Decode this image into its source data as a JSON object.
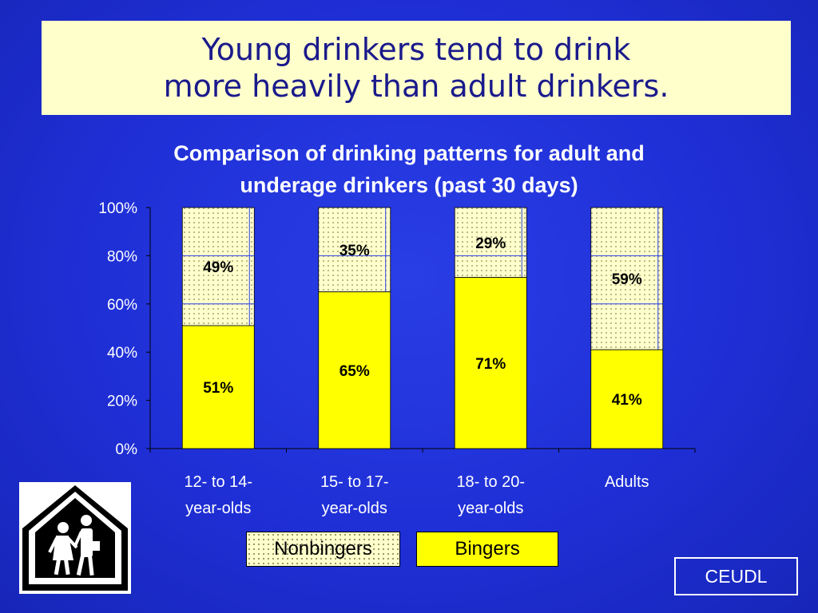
{
  "slide": {
    "title_line1": "Young drinkers tend to drink",
    "title_line2": "more heavily than adult drinkers.",
    "footer_label": "CEUDL"
  },
  "colors": {
    "background": "#1f2fd6",
    "title_box": "#ffffcc",
    "bingers": "#ffff00",
    "nonbingers": "#ffffcc"
  },
  "legend": {
    "nonbingers": "Nonbingers",
    "bingers": "Bingers"
  },
  "icons": {
    "school_sign": "school-crossing-sign-icon"
  },
  "chart_data": {
    "type": "bar",
    "stacked": true,
    "percent": true,
    "title_line1": "Comparison of drinking patterns for adult and",
    "title_line2": "underage drinkers (past 30 days)",
    "categories": [
      [
        "12- to 14-",
        "year-olds"
      ],
      [
        "15- to 17-",
        "year-olds"
      ],
      [
        "18- to 20-",
        "year-olds"
      ],
      [
        "Adults",
        ""
      ]
    ],
    "series": [
      {
        "name": "Bingers",
        "values": [
          51,
          65,
          71,
          41
        ],
        "labels": [
          "51%",
          "65%",
          "71%",
          "41%"
        ]
      },
      {
        "name": "Nonbingers",
        "values": [
          49,
          35,
          29,
          59
        ],
        "labels": [
          "49%",
          "35%",
          "29%",
          "59%"
        ]
      }
    ],
    "ylim": [
      0,
      100
    ],
    "yticks": [
      "0%",
      "20%",
      "40%",
      "60%",
      "80%",
      "100%"
    ],
    "legend_position": "bottom"
  }
}
